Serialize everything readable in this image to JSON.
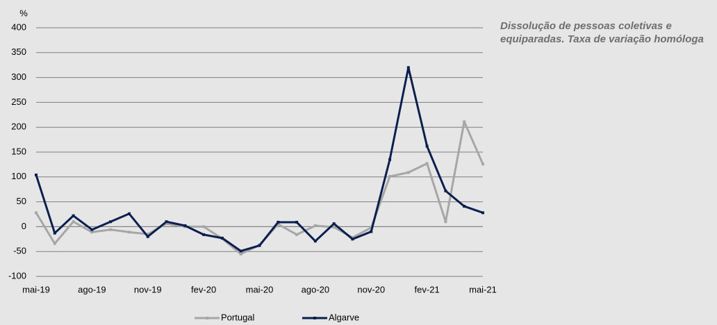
{
  "chart_data": {
    "type": "line",
    "title": "Dissolução de pessoas coletivas e equiparadas. Taxa de variação homóloga",
    "y_unit": "%",
    "categories": [
      "mai-19",
      null,
      null,
      "ago-19",
      null,
      null,
      "nov-19",
      null,
      null,
      "fev-20",
      null,
      null,
      "mai-20",
      null,
      null,
      "ago-20",
      null,
      null,
      "nov-20",
      null,
      null,
      "fev-21",
      null,
      null,
      "mai-21"
    ],
    "series": [
      {
        "name": "Portugal",
        "color": "#a6a6a6",
        "values": [
          28,
          -34,
          10,
          -11,
          -6,
          -11,
          -15,
          6,
          0,
          0,
          -24,
          -55,
          -37,
          5,
          -16,
          2,
          -1,
          -22,
          -2,
          101,
          109,
          127,
          10,
          211,
          126
        ]
      },
      {
        "name": "Algarve",
        "color": "#0b1f4f",
        "values": [
          104,
          -13,
          22,
          -6,
          10,
          26,
          -20,
          10,
          2,
          -16,
          -23,
          -49,
          -38,
          9,
          9,
          -29,
          6,
          -25,
          -10,
          135,
          320,
          162,
          72,
          41,
          28
        ]
      }
    ],
    "ylim": [
      -100,
      400
    ],
    "yticks": [
      -100,
      -50,
      0,
      50,
      100,
      150,
      200,
      250,
      300,
      350,
      400
    ],
    "grid": true
  }
}
